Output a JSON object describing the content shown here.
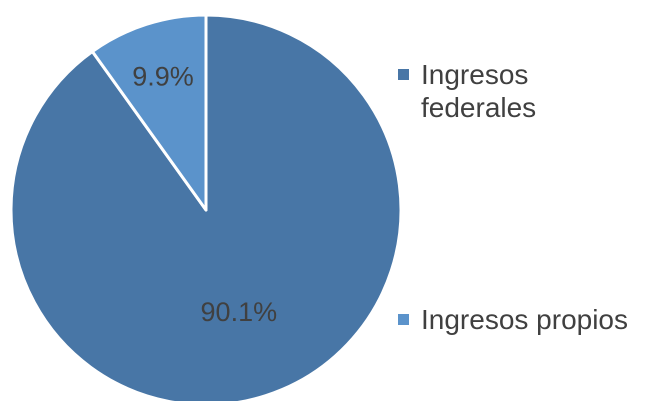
{
  "chart_data": {
    "type": "pie",
    "title": "",
    "start_angle_deg": 0,
    "direction": "clockwise",
    "legend_position": "right",
    "slices": [
      {
        "label": "Ingresos federales",
        "value": 90.1,
        "data_label": "90.1%",
        "color": "#4876A6"
      },
      {
        "label": "Ingresos propios",
        "value": 9.9,
        "data_label": "9.9%",
        "color": "#5B93CB"
      }
    ]
  },
  "legend": {
    "items": [
      {
        "label": "Ingresos federales",
        "color": "#4876A6"
      },
      {
        "label": "Ingresos propios",
        "color": "#5B93CB"
      }
    ]
  }
}
